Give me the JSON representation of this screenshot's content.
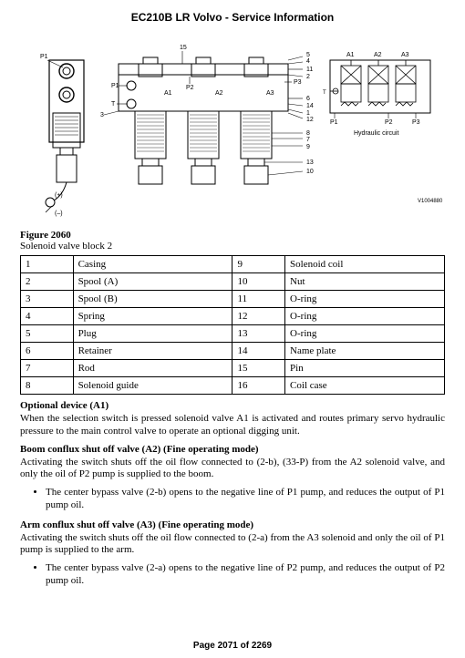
{
  "doc": {
    "title": "EC210B LR Volvo - Service Information",
    "page_footer": "Page 2071 of 2269"
  },
  "figure": {
    "number": "Figure 2060",
    "caption": "Solenoid valve block 2",
    "hydraulic_label": "Hydraulic circuit",
    "drawing_ref": "V1004880",
    "top_num": "15",
    "plus": "(+)",
    "minus": "(–)",
    "labels_P": {
      "P1": "P1",
      "P2": "P2",
      "P3": "P3",
      "T": "T"
    },
    "labels_A": {
      "A1": "A1",
      "A2": "A2",
      "A3": "A3",
      "A1s": "A1",
      "A2s": "A2",
      "A3s": "A3"
    },
    "right_nums": {
      "n5": "5",
      "n4": "4",
      "n11": "11",
      "n2": "2",
      "n6": "6",
      "n14": "14",
      "n1": "1",
      "n12": "12",
      "n8": "8",
      "n7": "7",
      "n9": "9",
      "n13": "13",
      "n10": "10"
    },
    "left_nums": {
      "n3": "3"
    }
  },
  "table": {
    "rows": [
      {
        "l": "1",
        "ln": "Casing",
        "r": "9",
        "rn": "Solenoid coil"
      },
      {
        "l": "2",
        "ln": "Spool (A)",
        "r": "10",
        "rn": "Nut"
      },
      {
        "l": "3",
        "ln": "Spool (B)",
        "r": "11",
        "rn": "O-ring"
      },
      {
        "l": "4",
        "ln": "Spring",
        "r": "12",
        "rn": "O-ring"
      },
      {
        "l": "5",
        "ln": "Plug",
        "r": "13",
        "rn": "O-ring"
      },
      {
        "l": "6",
        "ln": "Retainer",
        "r": "14",
        "rn": "Name plate"
      },
      {
        "l": "7",
        "ln": "Rod",
        "r": "15",
        "rn": "Pin"
      },
      {
        "l": "8",
        "ln": "Solenoid guide",
        "r": "16",
        "rn": "Coil case"
      }
    ]
  },
  "sections": {
    "s1": {
      "head": "Optional device (A1)",
      "body": "When the selection switch is pressed solenoid valve A1 is activated and routes primary servo hydraulic pressure to the main control valve to operate an optional digging unit."
    },
    "s2": {
      "head": "Boom conflux shut off valve (A2) (Fine operating mode)",
      "body": "Activating the switch shuts off the oil flow connected to (2-b), (33-P) from the A2 solenoid valve, and only the oil of P2 pump is supplied to the boom.",
      "bullet1": "The center bypass valve (2-b) opens to the negative line of P1 pump, and reduces the output of P1 pump oil."
    },
    "s3": {
      "head": "Arm conflux shut off valve (A3) (Fine operating mode)",
      "body": "Activating the switch shuts off the oil flow connected to (2-a) from the A3 solenoid and only the oil of P1 pump is supplied to the arm.",
      "bullet1": "The center bypass valve (2-a) opens to the negative line of P2 pump, and reduces the output of P2 pump oil."
    }
  }
}
